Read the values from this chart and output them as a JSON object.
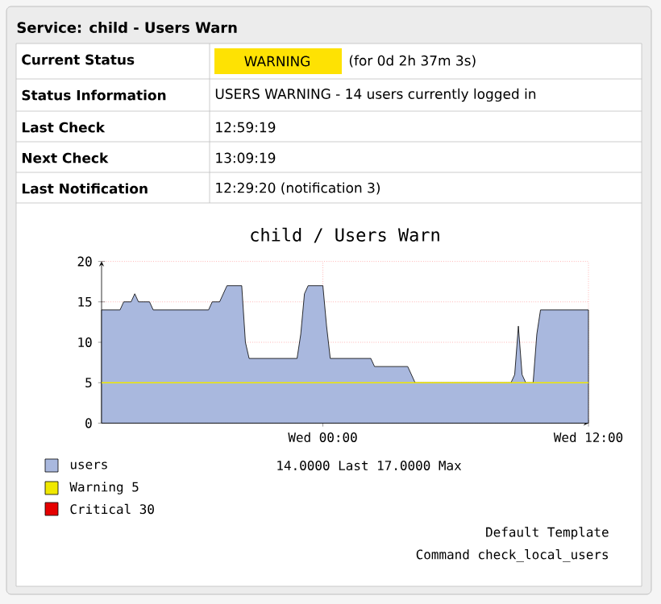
{
  "chart_data": {
    "type": "area",
    "title": "child / Users Warn",
    "categories": [
      null,
      null,
      null,
      null,
      null,
      null,
      null,
      null,
      null,
      null,
      null,
      null,
      null,
      null,
      null,
      null,
      null,
      null,
      null,
      null,
      null,
      null,
      null,
      null,
      null,
      null,
      null,
      null,
      null,
      null,
      null,
      null,
      null,
      null,
      null,
      null,
      null,
      null,
      null,
      null,
      null,
      null,
      null,
      null,
      null,
      null,
      null,
      null,
      null,
      null,
      null,
      null,
      null,
      null,
      null,
      null,
      null,
      null,
      null,
      null,
      "Wed 00:00",
      null,
      null,
      null,
      null,
      null,
      null,
      null,
      null,
      null,
      null,
      null,
      null,
      null,
      null,
      null,
      null,
      null,
      null,
      null,
      null,
      null,
      null,
      null,
      null,
      null,
      null,
      null,
      null,
      null,
      null,
      null,
      null,
      null,
      null,
      null,
      null,
      null,
      null,
      null,
      null,
      null,
      null,
      null,
      null,
      null,
      null,
      null,
      null,
      null,
      null,
      null,
      null,
      null,
      null,
      null,
      null,
      null,
      null,
      null,
      null,
      null,
      null,
      null,
      null,
      null,
      null,
      null,
      null,
      null,
      null,
      null,
      "Wed 12:00"
    ],
    "series": [
      {
        "name": "users",
        "color": "#a9b8de",
        "values": [
          14,
          14,
          14,
          14,
          14,
          14,
          15,
          15,
          15,
          16,
          15,
          15,
          15,
          15,
          14,
          14,
          14,
          14,
          14,
          14,
          14,
          14,
          14,
          14,
          14,
          14,
          14,
          14,
          14,
          14,
          15,
          15,
          15,
          16,
          17,
          17,
          17,
          17,
          17,
          10,
          8,
          8,
          8,
          8,
          8,
          8,
          8,
          8,
          8,
          8,
          8,
          8,
          8,
          8,
          11,
          16,
          17,
          17,
          17,
          17,
          17,
          12,
          8,
          8,
          8,
          8,
          8,
          8,
          8,
          8,
          8,
          8,
          8,
          8,
          7,
          7,
          7,
          7,
          7,
          7,
          7,
          7,
          7,
          7,
          6,
          5,
          5,
          5,
          5,
          5,
          5,
          5,
          5,
          5,
          5,
          5,
          5,
          5,
          5,
          5,
          5,
          5,
          5,
          5,
          5,
          5,
          5,
          5,
          5,
          5,
          5,
          5,
          6,
          12,
          6,
          5,
          5,
          5,
          11,
          14,
          14,
          14,
          14,
          14,
          14,
          14,
          14,
          14,
          14,
          14,
          14,
          14,
          14
        ]
      }
    ],
    "ylim": [
      0,
      20
    ],
    "yticks": [
      0,
      5,
      10,
      15,
      20
    ],
    "grid": true,
    "legend": "bottom left",
    "ref_lines": [
      {
        "axis": "y",
        "value": 5,
        "label": "Warning 5",
        "color": "#f0e800"
      }
    ],
    "annotations": [
      "Service: child - Users Warn",
      "Current Status",
      "WARNING",
      "(for 0d 2h 37m 3s)",
      "Status Information",
      "USERS WARNING - 14 users currently logged in",
      "Last Check",
      "12:59:19",
      "Next Check",
      "13:09:19",
      "Last Notification",
      "12:29:20 (notification 3)",
      "14.0000 Last 17.0000 Max",
      "Critical 30",
      "Default Template",
      "Command check_local_users"
    ]
  }
}
